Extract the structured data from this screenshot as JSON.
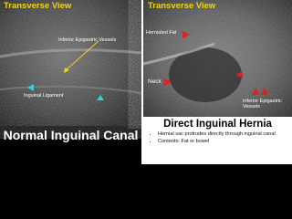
{
  "left": {
    "title": "Transverse View",
    "labels": [
      "Inferior Epigastric Vessels",
      "Inguinal Ligament"
    ],
    "caption": "Normal Inguinal Canal"
  },
  "right": {
    "title": "Transverse View",
    "labels": [
      "Herniated Fat",
      "Neck",
      "Inferior Epigastric Vessels"
    ],
    "caption": {
      "title": "Direct Inguinal Hernia",
      "bullets": [
        "Hernial sac protrudes directly through inguinal canal",
        "Contents: Fat or bowel"
      ]
    }
  }
}
